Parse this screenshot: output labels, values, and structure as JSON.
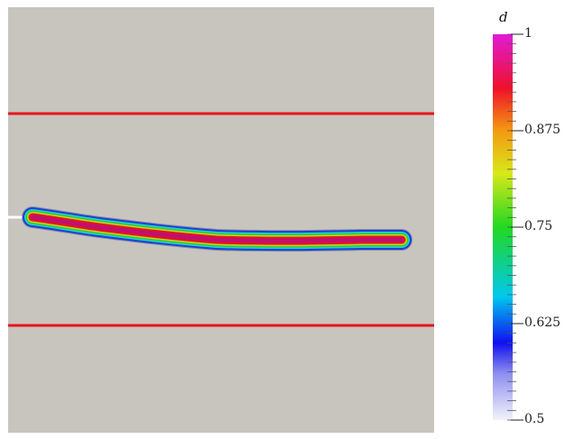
{
  "scene": {
    "background_color": "#c8c5be",
    "boundary_line_color": "#e8141c",
    "notch_color": "#ffffff",
    "crack_band_colors": [
      "#1e3fd8",
      "#22d3cc",
      "#2ecc38",
      "#c6d61c",
      "#e8141c",
      "#c0106e"
    ]
  },
  "colorbar": {
    "title": "d",
    "min": 0.5,
    "max": 1,
    "ticks": [
      {
        "value": 1,
        "label": "1"
      },
      {
        "value": 0.875,
        "label": "0.875"
      },
      {
        "value": 0.75,
        "label": "0.75"
      },
      {
        "value": 0.625,
        "label": "0.625"
      },
      {
        "value": 0.5,
        "label": "0.5"
      }
    ],
    "color_stops": [
      {
        "value": 0.5,
        "color": "#f2f2fb"
      },
      {
        "value": 0.56,
        "color": "#8f8ff0"
      },
      {
        "value": 0.6,
        "color": "#1010ee"
      },
      {
        "value": 0.66,
        "color": "#00c8ee"
      },
      {
        "value": 0.75,
        "color": "#22d822"
      },
      {
        "value": 0.82,
        "color": "#d8e81a"
      },
      {
        "value": 0.875,
        "color": "#f39a10"
      },
      {
        "value": 0.93,
        "color": "#f0102a"
      },
      {
        "value": 1,
        "color": "#e21ad6"
      }
    ]
  }
}
